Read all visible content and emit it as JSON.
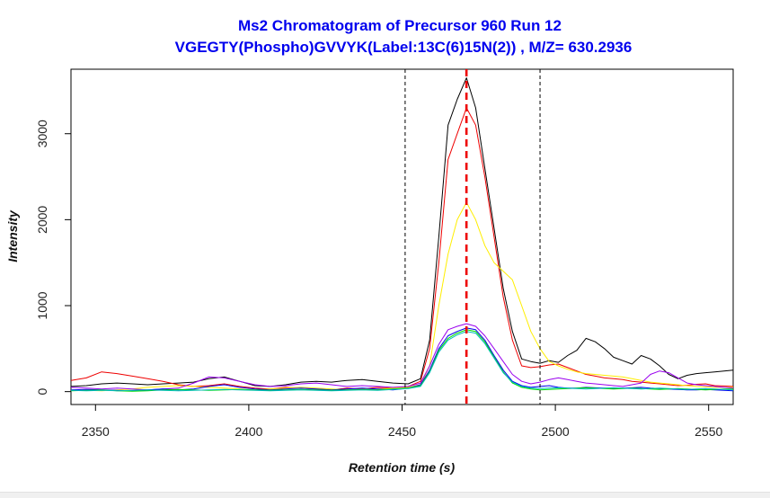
{
  "chart_data": {
    "type": "line",
    "title": "Ms2 Chromatogram of Precursor 960 Run 12",
    "subtitle": "VGEGTY(Phospho)GVVYK(Label:13C(6)15N(2)) , M/Z=  630.2936",
    "xlabel": "Retention time (s)",
    "ylabel": "Intensity",
    "xlim": [
      2342,
      2558
    ],
    "ylim": [
      -150,
      3750
    ],
    "xticks": [
      "2350",
      "2400",
      "2450",
      "2500",
      "2550"
    ],
    "yticks": [
      "0",
      "1000",
      "2000",
      "3000"
    ],
    "grid": false,
    "legend": "none",
    "vlines": [
      {
        "x": 2451,
        "style": "dashed",
        "color": "#000000"
      },
      {
        "x": 2471,
        "style": "dashed-bold",
        "color": "#ee0000"
      },
      {
        "x": 2495,
        "style": "dashed",
        "color": "#000000"
      }
    ],
    "x": [
      2342,
      2347,
      2352,
      2357,
      2362,
      2367,
      2372,
      2377,
      2382,
      2387,
      2392,
      2397,
      2402,
      2407,
      2412,
      2417,
      2422,
      2427,
      2432,
      2437,
      2442,
      2447,
      2452,
      2456,
      2459,
      2462,
      2465,
      2468,
      2471,
      2474,
      2477,
      2480,
      2483,
      2486,
      2489,
      2492,
      2495,
      2498,
      2501,
      2504,
      2507,
      2510,
      2513,
      2516,
      2519,
      2522,
      2525,
      2528,
      2531,
      2534,
      2537,
      2540,
      2543,
      2546,
      2549,
      2552,
      2555,
      2558
    ],
    "series": [
      {
        "color": "#000000",
        "values": [
          60,
          70,
          90,
          100,
          90,
          80,
          90,
          100,
          110,
          150,
          170,
          120,
          70,
          60,
          80,
          110,
          120,
          110,
          130,
          140,
          120,
          100,
          90,
          150,
          600,
          1800,
          3100,
          3400,
          3650,
          3300,
          2600,
          1900,
          1200,
          700,
          380,
          350,
          330,
          360,
          340,
          420,
          480,
          620,
          580,
          500,
          400,
          360,
          320,
          420,
          380,
          300,
          200,
          150,
          190,
          210,
          220,
          230,
          240,
          250
        ]
      },
      {
        "color": "#ee0000",
        "values": [
          130,
          160,
          230,
          210,
          180,
          150,
          120,
          80,
          60,
          70,
          90,
          60,
          40,
          30,
          50,
          40,
          30,
          20,
          40,
          30,
          50,
          40,
          60,
          120,
          500,
          1500,
          2700,
          3000,
          3300,
          3100,
          2500,
          1800,
          1100,
          600,
          300,
          280,
          290,
          310,
          320,
          280,
          240,
          200,
          180,
          160,
          150,
          140,
          120,
          110,
          100,
          90,
          80,
          70,
          75,
          85,
          90,
          70,
          65,
          60
        ]
      },
      {
        "color": "#ffee00",
        "values": [
          20,
          15,
          10,
          20,
          30,
          50,
          60,
          70,
          60,
          50,
          40,
          30,
          20,
          30,
          40,
          50,
          40,
          30,
          20,
          25,
          30,
          40,
          50,
          80,
          300,
          1000,
          1600,
          2000,
          2200,
          2000,
          1700,
          1500,
          1400,
          1300,
          1000,
          700,
          500,
          350,
          300,
          260,
          230,
          210,
          200,
          190,
          180,
          170,
          150,
          130,
          110,
          100,
          90,
          80,
          70,
          60,
          55,
          50,
          50,
          50
        ]
      },
      {
        "color": "#9a00ee",
        "values": [
          50,
          40,
          30,
          40,
          30,
          20,
          30,
          40,
          100,
          170,
          160,
          120,
          80,
          60,
          70,
          90,
          100,
          80,
          60,
          70,
          60,
          50,
          60,
          100,
          300,
          550,
          720,
          760,
          790,
          760,
          650,
          500,
          350,
          200,
          120,
          90,
          110,
          140,
          160,
          140,
          120,
          100,
          90,
          80,
          70,
          60,
          80,
          100,
          200,
          240,
          220,
          160,
          100,
          80,
          70,
          60,
          50,
          40
        ]
      },
      {
        "color": "#0000ee",
        "values": [
          20,
          25,
          20,
          15,
          10,
          20,
          30,
          20,
          30,
          60,
          80,
          50,
          30,
          20,
          30,
          40,
          30,
          20,
          30,
          40,
          30,
          20,
          40,
          80,
          250,
          500,
          650,
          700,
          740,
          720,
          600,
          420,
          250,
          120,
          70,
          50,
          60,
          70,
          50,
          40,
          40,
          50,
          45,
          40,
          35,
          40,
          45,
          50,
          40,
          35,
          30,
          25,
          20,
          20,
          25,
          20,
          15,
          10
        ]
      },
      {
        "color": "#00dd00",
        "values": [
          10,
          15,
          20,
          10,
          5,
          10,
          20,
          25,
          20,
          15,
          20,
          25,
          20,
          15,
          20,
          25,
          20,
          15,
          20,
          25,
          20,
          30,
          40,
          70,
          230,
          480,
          620,
          680,
          720,
          700,
          580,
          400,
          230,
          100,
          50,
          30,
          20,
          25,
          30,
          35,
          40,
          45,
          40,
          35,
          30,
          35,
          40,
          35,
          30,
          25,
          30,
          35,
          30,
          25,
          20,
          25,
          30,
          30
        ]
      },
      {
        "color": "#00bbbb",
        "values": [
          15,
          10,
          15,
          10,
          15,
          20,
          15,
          10,
          15,
          20,
          25,
          20,
          15,
          10,
          15,
          20,
          15,
          10,
          15,
          20,
          15,
          25,
          35,
          60,
          220,
          460,
          600,
          660,
          700,
          680,
          560,
          390,
          220,
          110,
          60,
          40,
          35,
          40,
          45,
          40,
          35,
          30,
          35,
          40,
          45,
          40,
          35,
          30,
          35,
          40,
          35,
          30,
          25,
          30,
          35,
          30,
          25,
          20
        ]
      }
    ]
  }
}
